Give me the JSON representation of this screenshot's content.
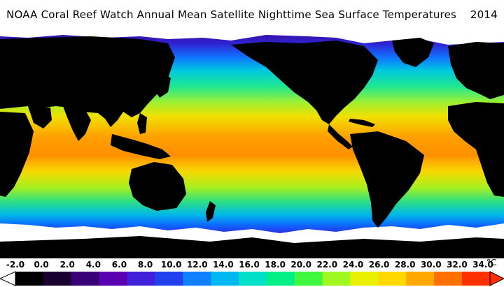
{
  "title": "NOAA Coral Reef Watch Annual Mean Satellite Nighttime Sea Surface Temperatures    2014",
  "colorbar": {
    "ticks": [
      "-2.0",
      "0.0",
      "2.0",
      "4.0",
      "6.0",
      "8.0",
      "10.0",
      "12.0",
      "14.0",
      "16.0",
      "18.0",
      "20.0",
      "22.0",
      "24.0",
      "26.0",
      "28.0",
      "30.0",
      "32.0",
      "34.0"
    ],
    "unit": "°C",
    "range": [
      -2,
      34
    ],
    "colors": [
      "#000000",
      "#1a0030",
      "#3a0078",
      "#5a00b0",
      "#4020d8",
      "#2040f0",
      "#1080ff",
      "#00b8f0",
      "#00e0c8",
      "#00f088",
      "#40f840",
      "#a0f820",
      "#e8f000",
      "#ffd800",
      "#ffa800",
      "#ff7000",
      "#ff3000"
    ]
  },
  "map": {
    "land_color": "#000000",
    "ice_color": "#ffffff",
    "palette_stops": [
      "#2a0050",
      "#4a10b0",
      "#2040f0",
      "#10a0ff",
      "#00e0c0",
      "#40f060",
      "#b0f020",
      "#f0e000",
      "#ffb000",
      "#ff8000"
    ]
  }
}
